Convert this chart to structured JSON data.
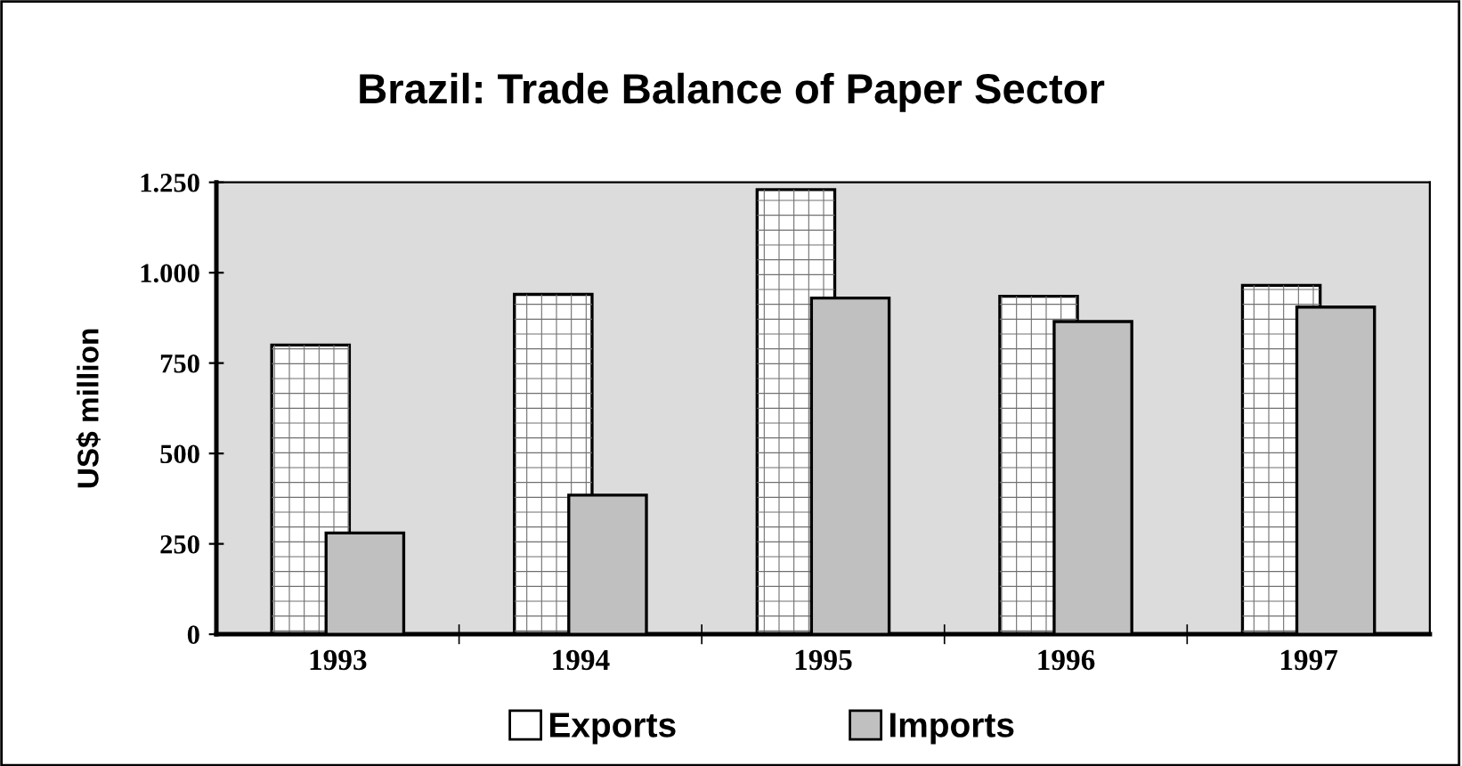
{
  "chart_data": {
    "type": "bar",
    "title": "Brazil: Trade Balance of Paper Sector",
    "ylabel": "US$ million",
    "categories": [
      "1993",
      "1994",
      "1995",
      "1996",
      "1997"
    ],
    "series": [
      {
        "name": "Exports",
        "color": "#ffffff",
        "values": [
          800,
          940,
          1230,
          935,
          965
        ]
      },
      {
        "name": "Imports",
        "color": "#c0c0c0",
        "values": [
          280,
          385,
          930,
          865,
          905
        ]
      }
    ],
    "ylim": [
      0,
      1250
    ],
    "yticks": [
      0,
      250,
      500,
      750,
      {
        "value": 1000,
        "label": "1.000"
      },
      {
        "value": 1250,
        "label": "1.250"
      }
    ],
    "grid": false,
    "legend": "bottom"
  }
}
